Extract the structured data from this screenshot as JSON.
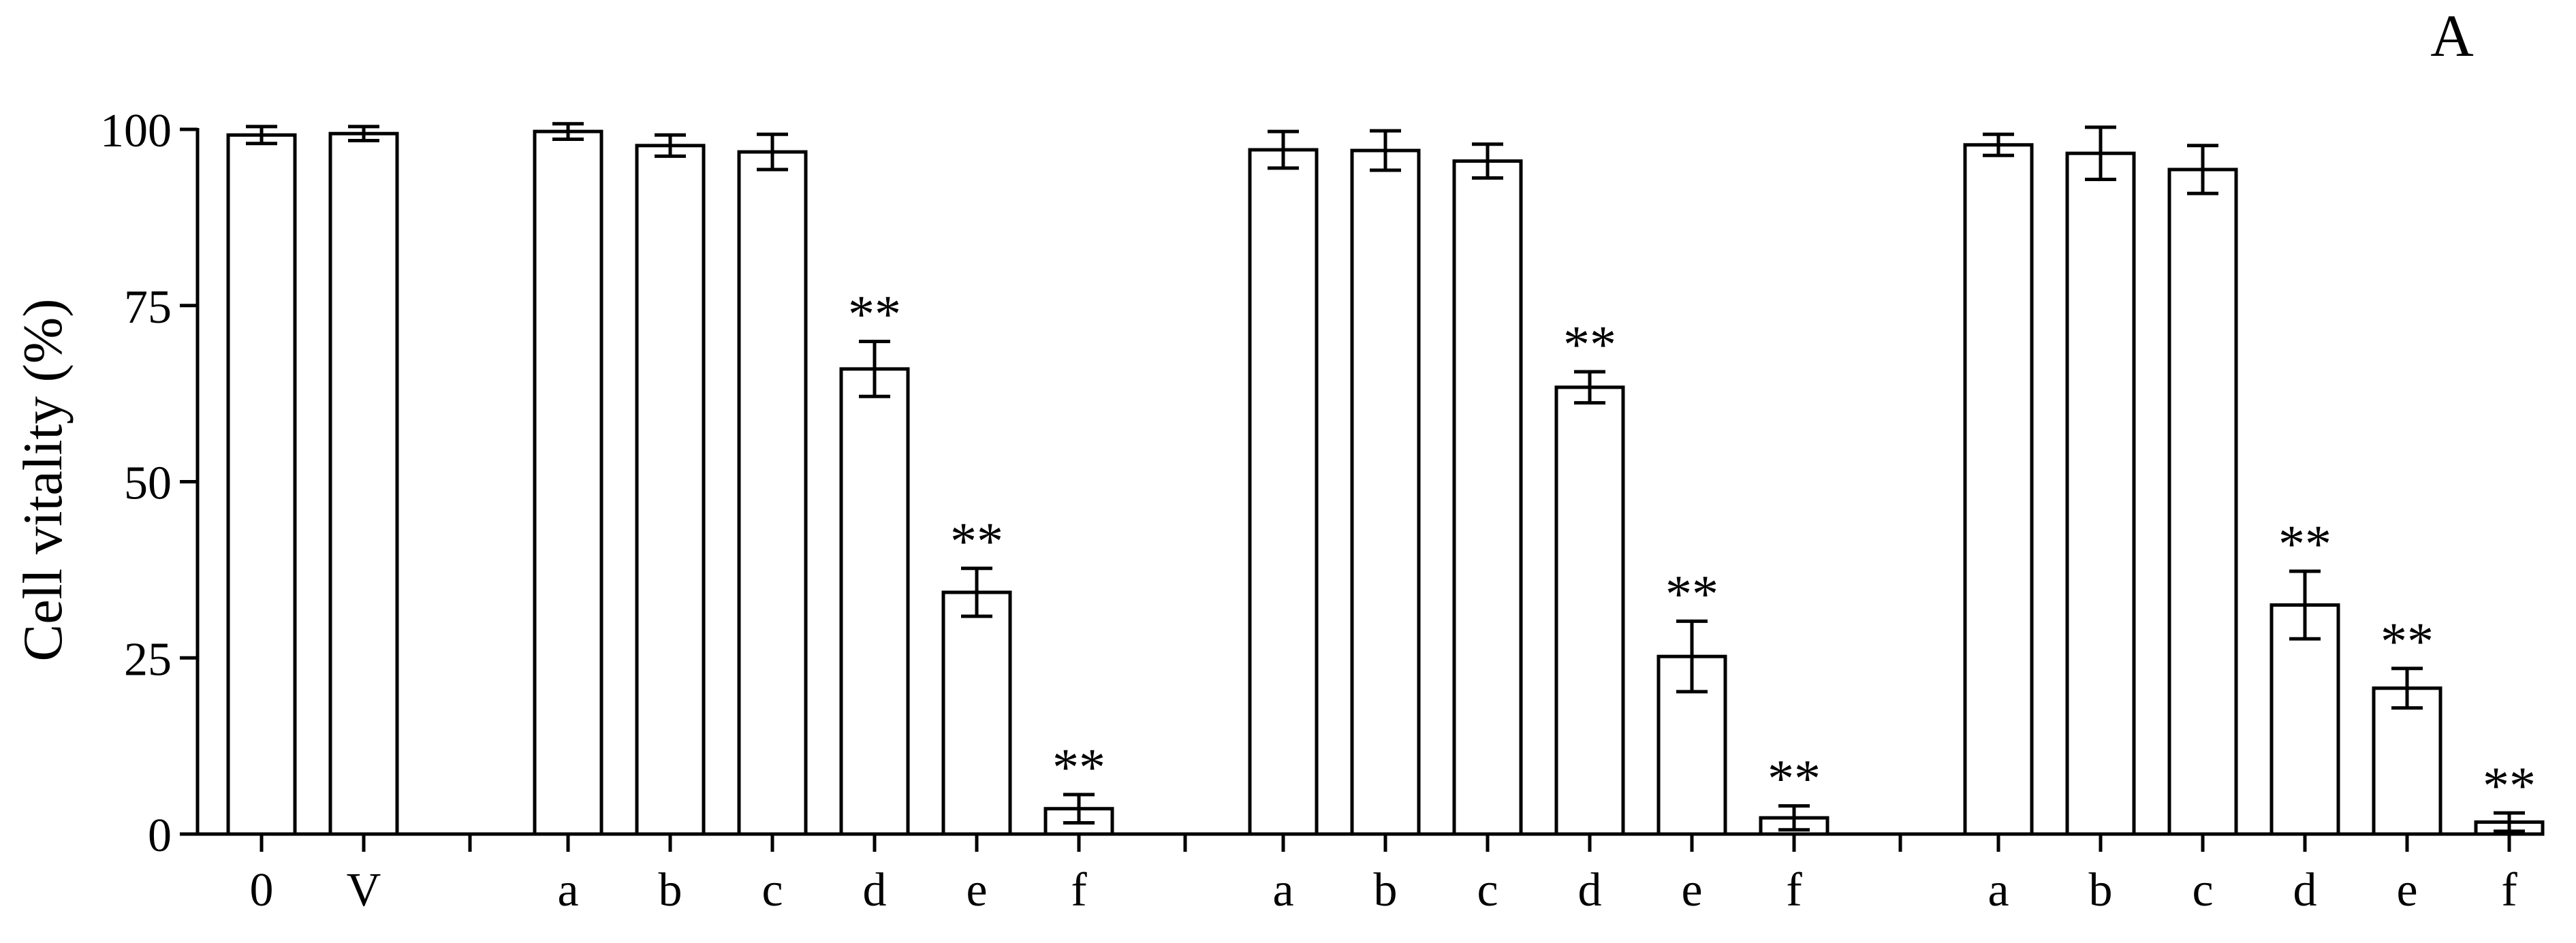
{
  "panel_label": "A",
  "chart_data": {
    "type": "bar",
    "title": "",
    "xlabel": "",
    "ylabel": "Cell vitality (%)",
    "ylim": [
      0,
      100
    ],
    "yticks": [
      0,
      25,
      50,
      75,
      100
    ],
    "grid": false,
    "legend": "none",
    "bar_fill": "#ffffff",
    "bar_stroke": "#000000",
    "groups": [
      {
        "categories": [
          "0",
          "V"
        ],
        "values": [
          99.2,
          99.4
        ],
        "errors": [
          1.2,
          1.0
        ],
        "annotations": [
          "",
          ""
        ]
      },
      {
        "categories": [
          "a",
          "b",
          "c",
          "d",
          "e",
          "f"
        ],
        "values": [
          99.7,
          97.7,
          96.8,
          66.0,
          34.3,
          3.6
        ],
        "errors": [
          1.1,
          1.5,
          2.5,
          3.9,
          3.4,
          2.0
        ],
        "annotations": [
          "",
          "",
          "",
          "**",
          "**",
          "**"
        ]
      },
      {
        "categories": [
          "a",
          "b",
          "c",
          "d",
          "e",
          "f"
        ],
        "values": [
          97.1,
          97.0,
          95.5,
          63.4,
          25.2,
          2.3
        ],
        "errors": [
          2.6,
          2.8,
          2.4,
          2.2,
          5.0,
          1.7
        ],
        "annotations": [
          "",
          "",
          "",
          "**",
          "**",
          "**"
        ]
      },
      {
        "categories": [
          "a",
          "b",
          "c",
          "d",
          "e",
          "f"
        ],
        "values": [
          97.8,
          96.6,
          94.3,
          32.5,
          20.7,
          1.7
        ],
        "errors": [
          1.5,
          3.7,
          3.4,
          4.8,
          2.8,
          1.3
        ],
        "annotations": [
          "",
          "",
          "",
          "**",
          "**",
          "**"
        ]
      }
    ]
  }
}
